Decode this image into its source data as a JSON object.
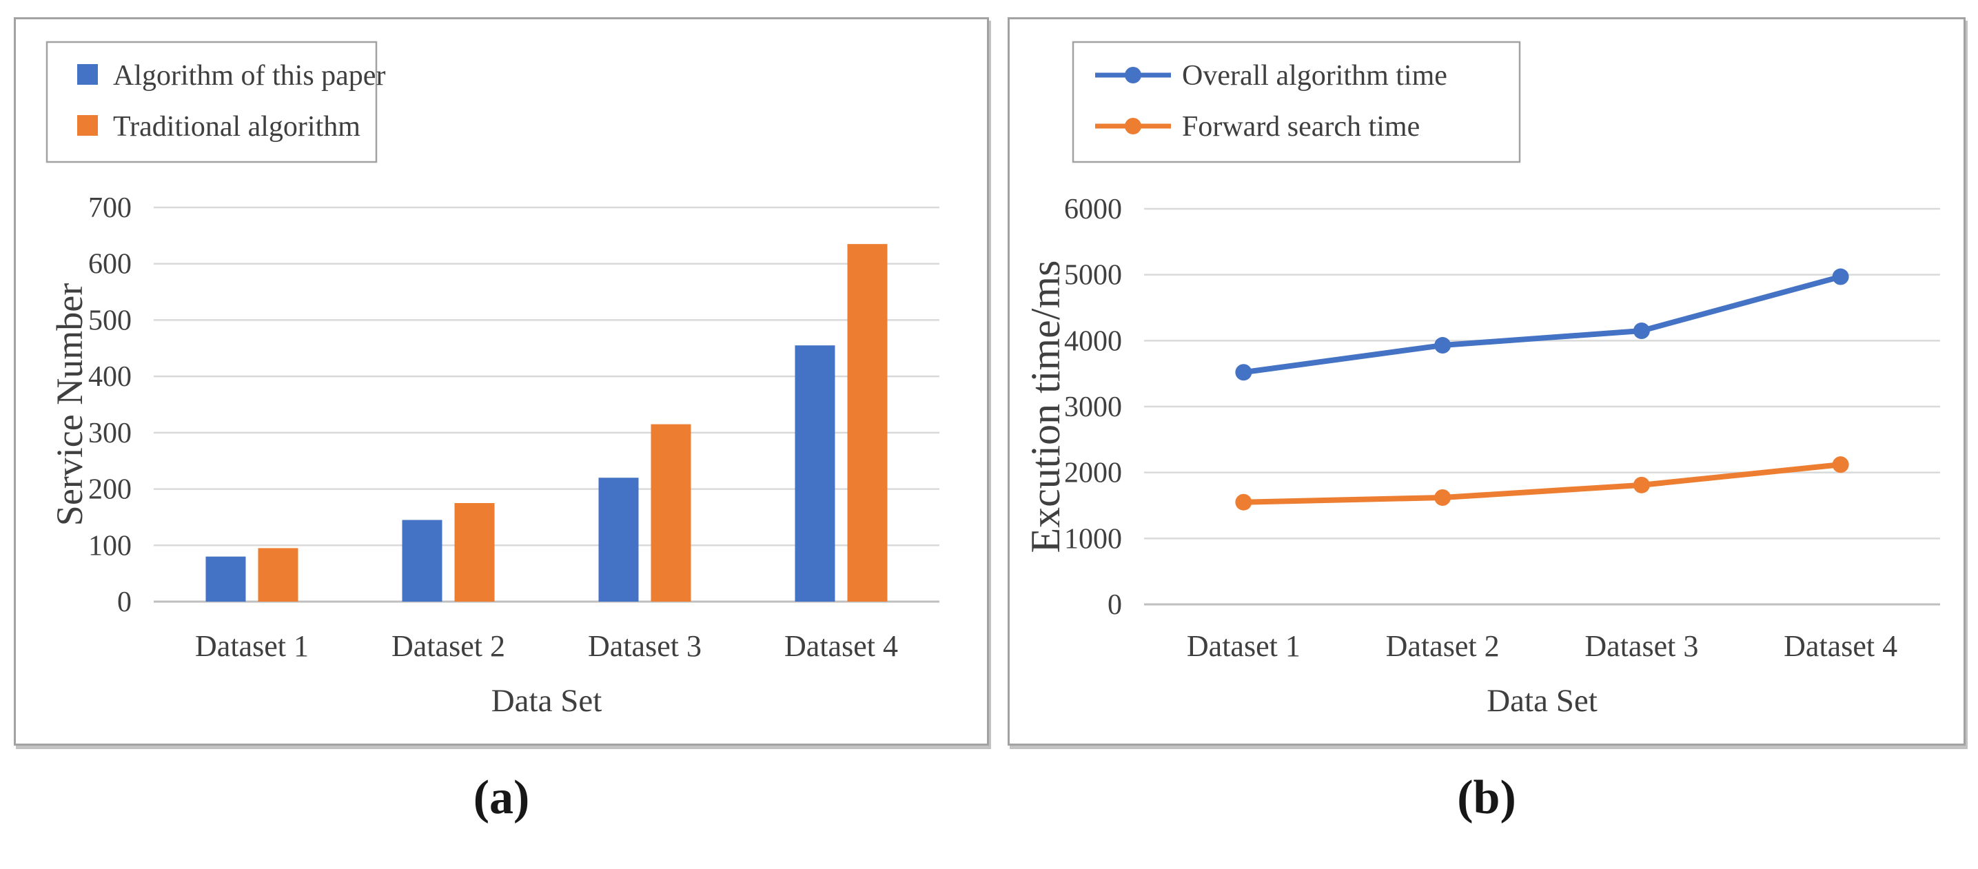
{
  "figure": {
    "background": "#ffffff"
  },
  "colors": {
    "blue": "#4472C4",
    "orange": "#ED7D31",
    "grid": "#D9D9D9",
    "axis_line": "#BFBFBF",
    "panel_border": "#A2A2A2",
    "text": "#3F3F3F"
  },
  "captions": {
    "a": "(a)",
    "b": "(b)"
  },
  "chart_data": [
    {
      "id": "a",
      "type": "bar",
      "title": "",
      "categories": [
        "Dataset 1",
        "Dataset 2",
        "Dataset 3",
        "Dataset 4"
      ],
      "series": [
        {
          "name": "Algorithm of this paper",
          "color_key": "blue",
          "values": [
            80,
            145,
            220,
            455
          ]
        },
        {
          "name": "Traditional algorithm",
          "color_key": "orange",
          "values": [
            95,
            175,
            315,
            635
          ]
        }
      ],
      "xlabel": "Data Set",
      "ylabel": "Service Number",
      "ylim": [
        0,
        700
      ],
      "yticks": [
        0,
        100,
        200,
        300,
        400,
        500,
        600,
        700
      ],
      "grid": true,
      "legend_position": "top-left"
    },
    {
      "id": "b",
      "type": "line",
      "title": "",
      "categories": [
        "Dataset 1",
        "Dataset 2",
        "Dataset 3",
        "Dataset 4"
      ],
      "series": [
        {
          "name": "Overall algorithm time",
          "color_key": "blue",
          "values": [
            3520,
            3930,
            4150,
            4970
          ]
        },
        {
          "name": "Forward search time",
          "color_key": "orange",
          "values": [
            1550,
            1620,
            1810,
            2120
          ]
        }
      ],
      "xlabel": "Data Set",
      "ylabel": "Excution time/ms",
      "ylim": [
        0,
        6000
      ],
      "yticks": [
        0,
        1000,
        2000,
        3000,
        4000,
        5000,
        6000
      ],
      "grid": true,
      "legend_position": "top-left"
    }
  ]
}
